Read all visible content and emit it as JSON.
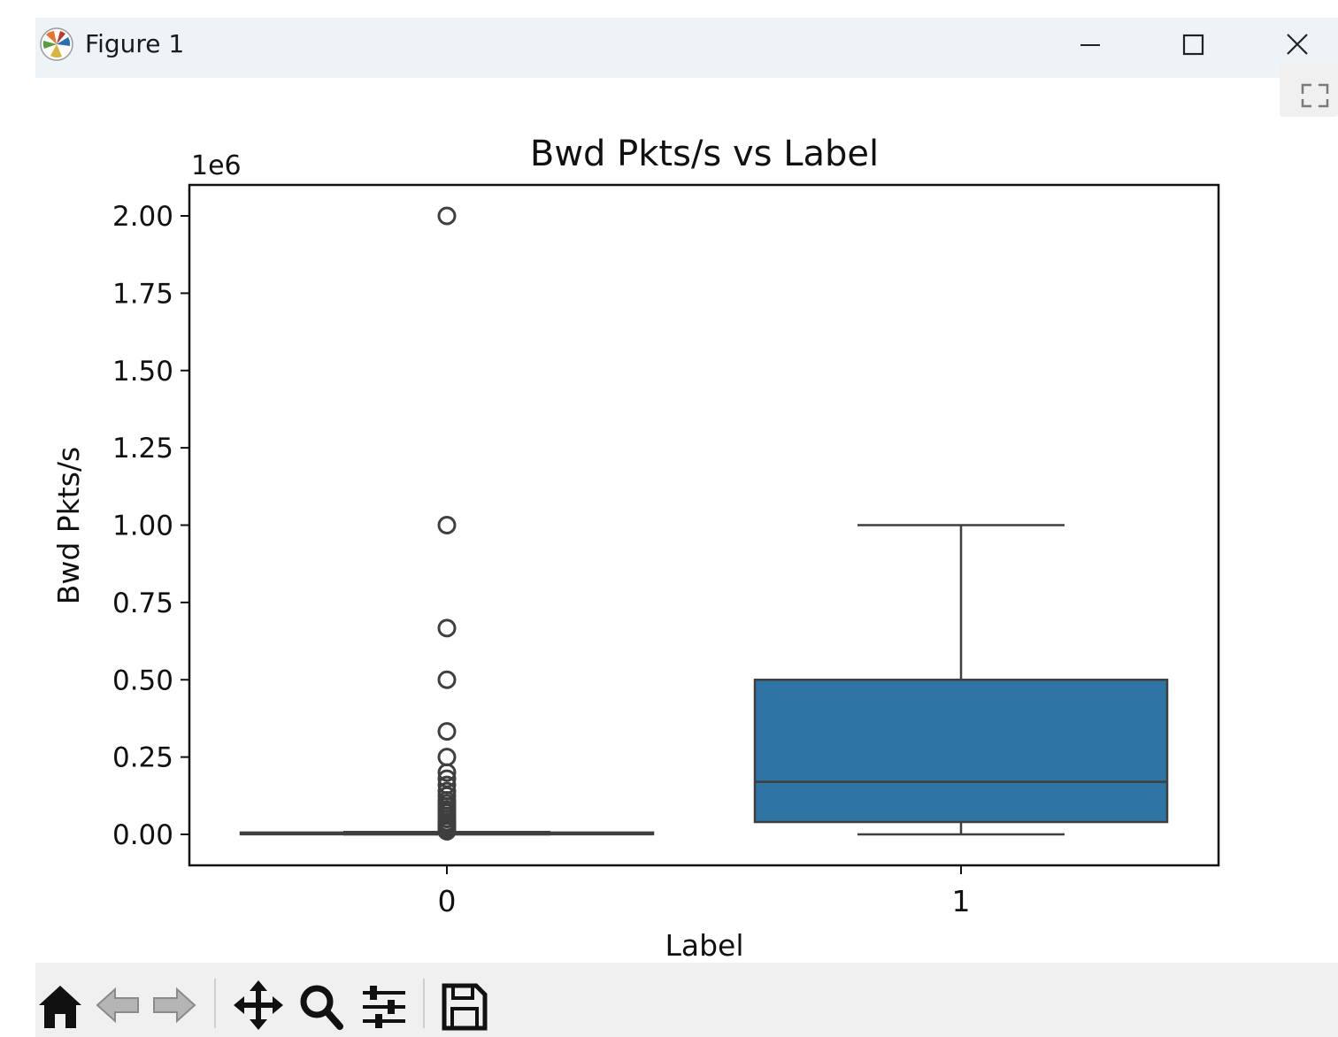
{
  "window": {
    "title": "Figure 1",
    "icon": "matplotlib-icon",
    "controls": [
      "minimize-icon",
      "maximize-icon",
      "close-icon"
    ]
  },
  "toolbar": {
    "buttons": [
      "home-icon",
      "back-arrow-icon",
      "forward-arrow-icon",
      "pan-icon",
      "zoom-icon",
      "configure-subplots-icon",
      "save-icon"
    ]
  },
  "chart_data": {
    "type": "box",
    "title": "Bwd Pkts/s vs Label",
    "xlabel": "Label",
    "ylabel": "Bwd Pkts/s",
    "y_offset_label": "1e6",
    "categories": [
      "0",
      "1"
    ],
    "ylim": [
      -0.1,
      2.1
    ],
    "yticks": [
      0.0,
      0.25,
      0.5,
      0.75,
      1.0,
      1.25,
      1.5,
      1.75,
      2.0
    ],
    "ytick_labels": [
      "0.00",
      "0.25",
      "0.50",
      "0.75",
      "1.00",
      "1.25",
      "1.50",
      "1.75",
      "2.00"
    ],
    "unit_multiplier": 1000000,
    "boxes": [
      {
        "category": "0",
        "whisker_low": 0.0,
        "q1": 0.001,
        "median": 0.002,
        "q3": 0.006,
        "whisker_high": 0.008,
        "fill": "#ffffff",
        "outliers": [
          2.0,
          1.0,
          0.667,
          0.5,
          0.333,
          0.25,
          0.2,
          0.18,
          0.16,
          0.14,
          0.125,
          0.11,
          0.1,
          0.09,
          0.08,
          0.07,
          0.06,
          0.05,
          0.04,
          0.035,
          0.03,
          0.025,
          0.02,
          0.015,
          0.01
        ]
      },
      {
        "category": "1",
        "whisker_low": 0.0,
        "q1": 0.04,
        "median": 0.17,
        "q3": 0.5,
        "whisker_high": 1.0,
        "fill": "#2e75a5",
        "outliers": []
      }
    ],
    "grid": false,
    "colors": {
      "box_edge": "#3f3f3f",
      "series_fill": "#2e75a5"
    }
  }
}
